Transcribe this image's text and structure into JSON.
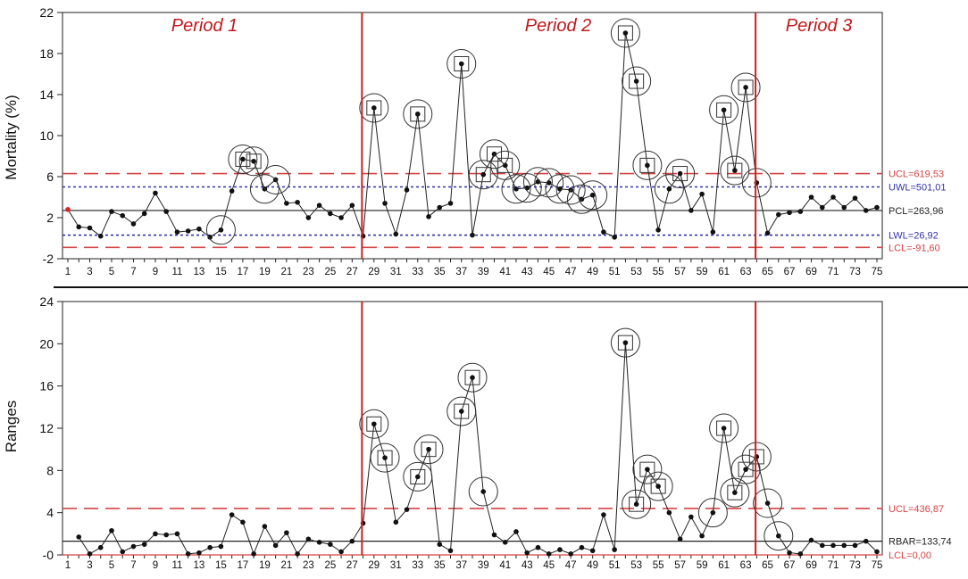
{
  "chart_data": [
    {
      "type": "line",
      "ylabel": "Mortality (%)",
      "ylim": [
        -2,
        22
      ],
      "yticks": [
        "-2",
        "2",
        "6",
        "10",
        "14",
        "18",
        "22"
      ],
      "ytick_values": [
        -2,
        2,
        6,
        10,
        14,
        18,
        22
      ],
      "x": [
        1,
        2,
        3,
        4,
        5,
        6,
        7,
        8,
        9,
        10,
        11,
        12,
        13,
        14,
        15,
        16,
        17,
        18,
        19,
        20,
        21,
        22,
        23,
        24,
        25,
        26,
        27,
        28,
        29,
        30,
        31,
        32,
        33,
        34,
        35,
        36,
        37,
        38,
        39,
        40,
        41,
        42,
        43,
        44,
        45,
        46,
        47,
        48,
        49,
        50,
        51,
        52,
        53,
        54,
        55,
        56,
        57,
        58,
        59,
        60,
        61,
        62,
        63,
        64,
        65,
        66,
        67,
        68,
        69,
        70,
        71,
        72,
        73,
        74,
        75
      ],
      "xticks": [
        "1",
        "3",
        "5",
        "7",
        "9",
        "11",
        "13",
        "15",
        "17",
        "19",
        "21",
        "23",
        "25",
        "27",
        "29",
        "31",
        "33",
        "35",
        "37",
        "39",
        "41",
        "43",
        "45",
        "47",
        "49",
        "51",
        "53",
        "55",
        "57",
        "59",
        "61",
        "63",
        "65",
        "67",
        "69",
        "71",
        "73",
        "75"
      ],
      "series": [
        {
          "values": [
            2.8,
            1.1,
            1.0,
            0.2,
            2.6,
            2.2,
            1.4,
            2.4,
            4.4,
            2.6,
            0.6,
            0.7,
            0.9,
            0.1,
            0.8,
            4.6,
            7.7,
            7.5,
            4.8,
            5.7,
            3.4,
            3.5,
            2.0,
            3.2,
            2.4,
            2.0,
            3.2,
            0.2,
            12.7,
            3.4,
            0.4,
            4.7,
            12.1,
            2.1,
            3.0,
            3.4,
            17.0,
            0.3,
            6.2,
            8.2,
            7.1,
            4.8,
            4.9,
            5.5,
            5.4,
            4.8,
            4.7,
            3.8,
            4.2,
            0.6,
            0.1,
            20.0,
            15.3,
            7.1,
            0.8,
            4.8,
            6.3,
            2.7,
            4.3,
            0.6,
            12.5,
            6.6,
            14.7,
            5.4,
            0.5,
            2.3,
            2.5,
            2.6,
            4.0,
            3.0,
            4.0,
            3.0,
            3.9,
            2.7,
            3.0
          ],
          "first_point_color": "#e02020"
        }
      ],
      "flagged_points": [
        15,
        17,
        18,
        19,
        20,
        29,
        33,
        37,
        39,
        40,
        41,
        42,
        43,
        44,
        45,
        46,
        47,
        48,
        49,
        52,
        53,
        54,
        56,
        57,
        61,
        62,
        63,
        64
      ],
      "squared_points": [
        17,
        18,
        29,
        33,
        37,
        39,
        40,
        41,
        52,
        53,
        54,
        57,
        61,
        62,
        63
      ],
      "reference_lines": [
        {
          "label": "UCL=619,53",
          "value": 6.3,
          "style": "long-dash",
          "color": "#d44444"
        },
        {
          "label": "UWL=501,01",
          "value": 5.0,
          "style": "dotted",
          "color": "#3333aa"
        },
        {
          "label": "PCL=263,96",
          "value": 2.7,
          "style": "solid",
          "color": "#222222"
        },
        {
          "label": "LWL=26,92",
          "value": 0.3,
          "style": "dotted",
          "color": "#3333aa"
        },
        {
          "label": "LCL=-91,60",
          "value": -0.9,
          "style": "long-dash",
          "color": "#d44444"
        }
      ],
      "periods": [
        {
          "label": "Period 1"
        },
        {
          "label": "Period 2"
        },
        {
          "label": "Period 3"
        }
      ],
      "period_dividers_after_x": [
        27.9,
        63.9
      ]
    },
    {
      "type": "line",
      "ylabel": "Ranges",
      "ylim": [
        0,
        24
      ],
      "yticks": [
        "-0",
        "4",
        "8",
        "12",
        "16",
        "20",
        "24"
      ],
      "ytick_values": [
        0,
        4,
        8,
        12,
        16,
        20,
        24
      ],
      "x": [
        2,
        3,
        4,
        5,
        6,
        7,
        8,
        9,
        10,
        11,
        12,
        13,
        14,
        15,
        16,
        17,
        18,
        19,
        20,
        21,
        22,
        23,
        24,
        25,
        26,
        27,
        28,
        29,
        30,
        31,
        32,
        33,
        34,
        35,
        36,
        37,
        38,
        39,
        40,
        41,
        42,
        43,
        44,
        45,
        46,
        47,
        48,
        49,
        50,
        51,
        52,
        53,
        54,
        55,
        56,
        57,
        58,
        59,
        60,
        61,
        62,
        63,
        64,
        65,
        66,
        67,
        68,
        69,
        70,
        71,
        72,
        73,
        74,
        75
      ],
      "xticks": [
        "1",
        "3",
        "5",
        "7",
        "9",
        "11",
        "13",
        "15",
        "17",
        "19",
        "21",
        "23",
        "25",
        "27",
        "29",
        "31",
        "33",
        "35",
        "37",
        "39",
        "41",
        "43",
        "45",
        "47",
        "49",
        "51",
        "53",
        "55",
        "57",
        "59",
        "61",
        "63",
        "65",
        "67",
        "69",
        "71",
        "73",
        "75"
      ],
      "series": [
        {
          "values": [
            1.7,
            0.1,
            0.7,
            2.3,
            0.3,
            0.8,
            1.0,
            2.0,
            1.9,
            2.0,
            0.1,
            0.2,
            0.7,
            0.8,
            3.8,
            3.1,
            0.1,
            2.7,
            0.9,
            2.1,
            0.1,
            1.5,
            1.2,
            1.0,
            0.3,
            1.3,
            3.0,
            12.4,
            9.2,
            3.1,
            4.3,
            7.4,
            10.0,
            1.0,
            0.4,
            13.6,
            16.8,
            6.0,
            1.9,
            1.2,
            2.2,
            0.2,
            0.7,
            0.1,
            0.5,
            0.1,
            0.7,
            0.4,
            3.8,
            0.5,
            20.1,
            4.8,
            8.1,
            6.5,
            4.0,
            1.5,
            3.6,
            1.8,
            4.0,
            12.0,
            5.9,
            8.1,
            9.3,
            4.9,
            1.8,
            0.2,
            0.1,
            1.4,
            0.9,
            0.9,
            0.9,
            0.9,
            1.3,
            0.3
          ]
        }
      ],
      "flagged_points": [
        29,
        30,
        33,
        34,
        37,
        38,
        39,
        52,
        53,
        54,
        55,
        60,
        61,
        62,
        63,
        64,
        65,
        66
      ],
      "squared_points": [
        29,
        30,
        33,
        34,
        37,
        38,
        52,
        53,
        54,
        55,
        61,
        62,
        63,
        64
      ],
      "reference_lines": [
        {
          "label": "UCL=436,87",
          "value": 4.4,
          "style": "long-dash",
          "color": "#d44444"
        },
        {
          "label": "RBAR=133,74",
          "value": 1.3,
          "style": "solid",
          "color": "#222222"
        },
        {
          "label": "LCL=0,00",
          "value": 0.0,
          "style": "solid",
          "color": "#d44444"
        }
      ],
      "period_dividers_after_x": [
        27.9,
        63.9
      ]
    }
  ],
  "colors": {
    "period_line": "#cc2222",
    "period_text": "#c0181c",
    "ucl": "#d44444",
    "warning": "#3333aa",
    "center": "#222222",
    "series": "#111111"
  }
}
